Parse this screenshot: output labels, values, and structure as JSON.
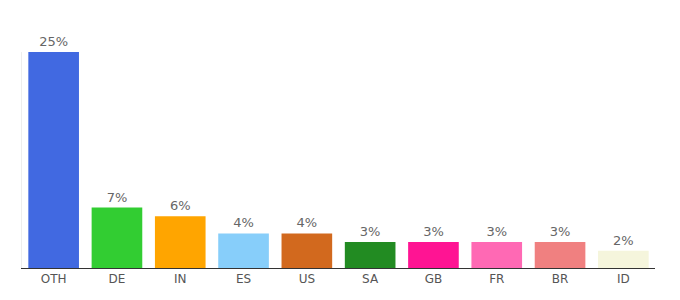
{
  "chart_data": {
    "type": "bar",
    "categories": [
      "OTH",
      "DE",
      "IN",
      "ES",
      "US",
      "SA",
      "GB",
      "FR",
      "BR",
      "ID"
    ],
    "values": [
      25,
      7,
      6,
      4,
      4,
      3,
      3,
      3,
      3,
      2
    ],
    "value_labels": [
      "25%",
      "7%",
      "6%",
      "4%",
      "4%",
      "3%",
      "3%",
      "3%",
      "3%",
      "2%"
    ],
    "colors": [
      "#4169e1",
      "#32cd32",
      "#ffa500",
      "#87cefa",
      "#d2691e",
      "#228b22",
      "#ff1493",
      "#ff69b4",
      "#f08080",
      "#f5f5dc"
    ],
    "ylim": [
      0,
      25
    ],
    "yticks": [],
    "grid": false,
    "data_labels": true,
    "tick_labels": "x"
  }
}
